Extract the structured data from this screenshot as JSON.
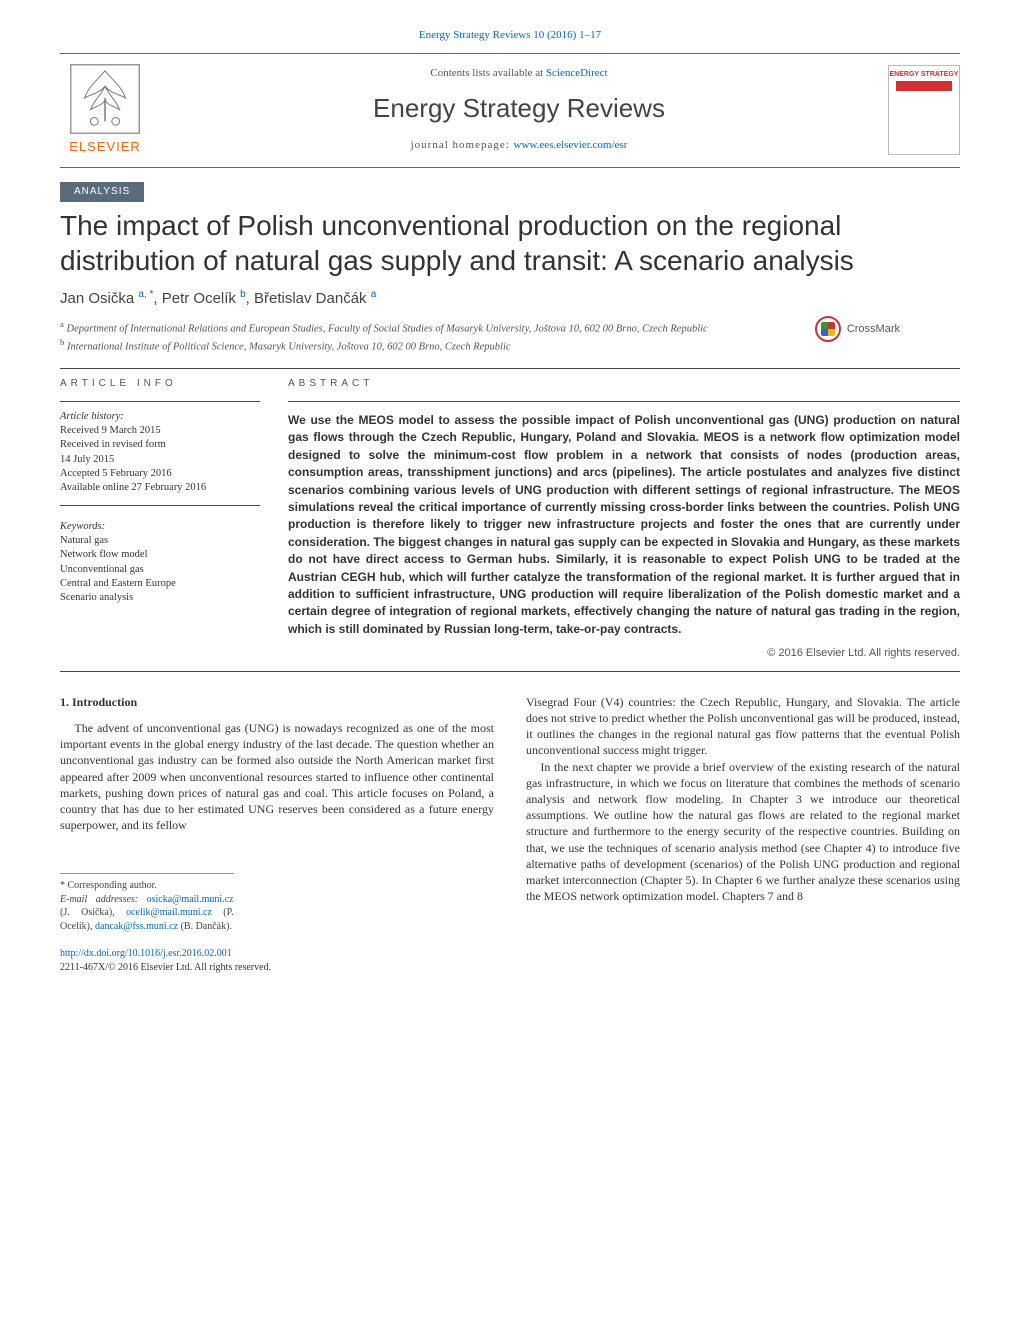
{
  "journal_ref": "Energy Strategy Reviews 10 (2016) 1–17",
  "header": {
    "contents_prefix": "Contents lists available at ",
    "contents_link": "ScienceDirect",
    "journal_title": "Energy Strategy Reviews",
    "homepage_prefix": "journal homepage: ",
    "homepage_url": "www.ees.elsevier.com/esr",
    "publisher_word": "ELSEVIER",
    "cover_label": "ENERGY STRATEGY"
  },
  "article_type": "ANALYSIS",
  "crossmark_label": "CrossMark",
  "title": "The impact of Polish unconventional production on the regional distribution of natural gas supply and transit: A scenario analysis",
  "authors_html": "Jan Osička <sup>a, *</sup>, Petr Ocelík <sup>b</sup>, Břetislav Dančák <sup>a</sup>",
  "affiliations": [
    {
      "sup": "a",
      "text": "Department of International Relations and European Studies, Faculty of Social Studies of Masaryk University, Joštova 10, 602 00 Brno, Czech Republic"
    },
    {
      "sup": "b",
      "text": "International Institute of Political Science, Masaryk University, Joštova 10, 602 00 Brno, Czech Republic"
    }
  ],
  "info": {
    "heading": "ARTICLE INFO",
    "history_label": "Article history:",
    "history": [
      "Received 9 March 2015",
      "Received in revised form",
      "14 July 2015",
      "Accepted 5 February 2016",
      "Available online 27 February 2016"
    ],
    "keywords_label": "Keywords:",
    "keywords": [
      "Natural gas",
      "Network flow model",
      "Unconventional gas",
      "Central and Eastern Europe",
      "Scenario analysis"
    ]
  },
  "abstract": {
    "heading": "ABSTRACT",
    "text": "We use the MEOS model to assess the possible impact of Polish unconventional gas (UNG) production on natural gas flows through the Czech Republic, Hungary, Poland and Slovakia. MEOS is a network flow optimization model designed to solve the minimum-cost flow problem in a network that consists of nodes (production areas, consumption areas, transshipment junctions) and arcs (pipelines). The article postulates and analyzes five distinct scenarios combining various levels of UNG production with different settings of regional infrastructure. The MEOS simulations reveal the critical importance of currently missing cross-border links between the countries. Polish UNG production is therefore likely to trigger new infrastructure projects and foster the ones that are currently under consideration. The biggest changes in natural gas supply can be expected in Slovakia and Hungary, as these markets do not have direct access to German hubs. Similarly, it is reasonable to expect Polish UNG to be traded at the Austrian CEGH hub, which will further catalyze the transformation of the regional market. It is further argued that in addition to sufficient infrastructure, UNG production will require liberalization of the Polish domestic market and a certain degree of integration of regional markets, effectively changing the nature of natural gas trading in the region, which is still dominated by Russian long-term, take-or-pay contracts.",
    "copyright": "© 2016 Elsevier Ltd. All rights reserved."
  },
  "body": {
    "section_heading": "1. Introduction",
    "left_para": "The advent of unconventional gas (UNG) is nowadays recognized as one of the most important events in the global energy industry of the last decade. The question whether an unconventional gas industry can be formed also outside the North American market first appeared after 2009 when unconventional resources started to influence other continental markets, pushing down prices of natural gas and coal. This article focuses on Poland, a country that has due to her estimated UNG reserves been considered as a future energy superpower, and its fellow",
    "right_para_1": "Visegrad Four (V4) countries: the Czech Republic, Hungary, and Slovakia. The article does not strive to predict whether the Polish unconventional gas will be produced, instead, it outlines the changes in the regional natural gas flow patterns that the eventual Polish unconventional success might trigger.",
    "right_para_2": "In the next chapter we provide a brief overview of the existing research of the natural gas infrastructure, in which we focus on literature that combines the methods of scenario analysis and network flow modeling. In Chapter 3 we introduce our theoretical assumptions. We outline how the natural gas flows are related to the regional market structure and furthermore to the energy security of the respective countries. Building on that, we use the techniques of scenario analysis method (see Chapter 4) to introduce five alternative paths of development (scenarios) of the Polish UNG production and regional market interconnection (Chapter 5). In Chapter 6 we further analyze these scenarios using the MEOS network optimization model. Chapters 7 and 8"
  },
  "footnotes": {
    "corresponding": "* Corresponding author.",
    "emails_label": "E-mail addresses:",
    "emails": [
      {
        "addr": "osicka@mail.muni.cz",
        "who": "(J. Osička),"
      },
      {
        "addr": "ocelik@mail.muni.cz",
        "who": "(P. Ocelík),"
      },
      {
        "addr": "dancak@fss.muni.cz",
        "who": "(B. Dančák)."
      }
    ]
  },
  "doi": {
    "url": "http://dx.doi.org/10.1016/j.esr.2016.02.001",
    "issn_line": "2211-467X/© 2016 Elsevier Ltd. All rights reserved."
  },
  "colors": {
    "link": "#0066cc",
    "publisher_orange": "#ff6600",
    "analysis_chip_bg": "#5a6b7b",
    "rule": "#444444"
  }
}
